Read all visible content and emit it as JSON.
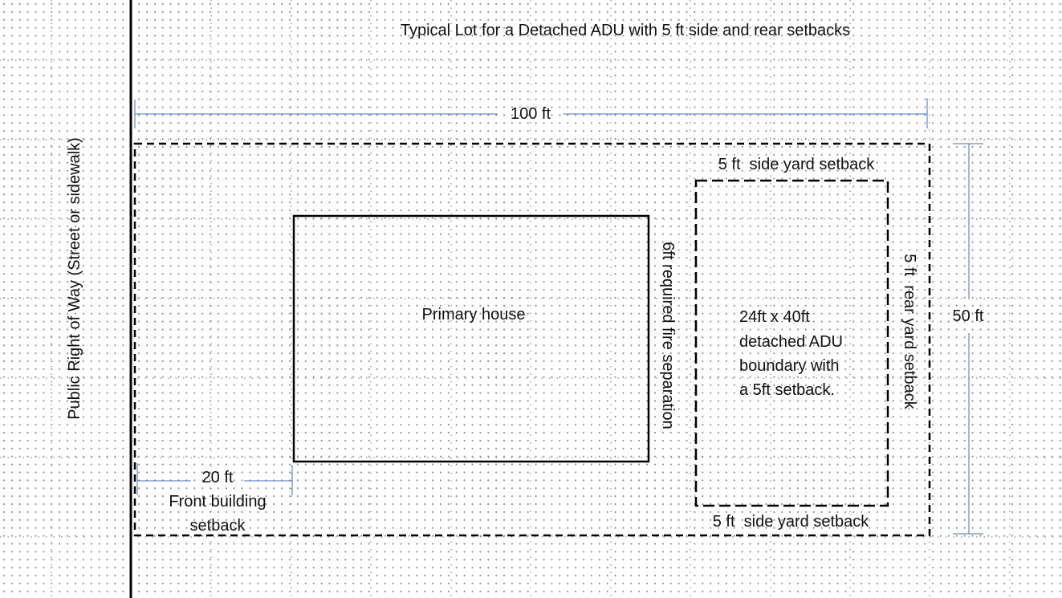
{
  "title": "Typical Lot for a Detached ADU with 5 ft side and rear setbacks",
  "labels": {
    "right_of_way": "Public Right of Way (Street or sidewalk)",
    "lot_width": "100 ft",
    "lot_depth": "50 ft",
    "front_setback_value": "20 ft",
    "front_setback_line1": "Front building",
    "front_setback_line2": "setback",
    "primary_house": "Primary house",
    "fire_separation": "6ft required fire separation",
    "side_setback_top": "5 ft  side yard setback",
    "side_setback_bottom": "5 ft  side yard setback",
    "rear_setback": "5 ft  rear yard setback",
    "adu_line1": "24ft x 40ft",
    "adu_line2": "detached ADU",
    "adu_line3": "boundary with",
    "adu_line4": "a 5ft setback."
  },
  "colors": {
    "dimension_line": "#4472c4",
    "outline": "#000000",
    "grid_dots": "#8c8c8c"
  }
}
